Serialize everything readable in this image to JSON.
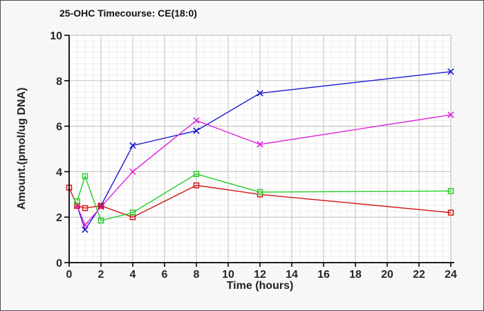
{
  "window": {
    "background": "#f7f7f7",
    "border_color": "#4d4d4d"
  },
  "chart_data": {
    "type": "line",
    "title": "25-OHC Timecourse: CE(18:0)",
    "xlabel": "Time (hours)",
    "ylabel": "Amount.(pmol/ug DNA)",
    "xlim": [
      0,
      24
    ],
    "ylim": [
      0,
      10
    ],
    "xticks": [
      0,
      2,
      4,
      6,
      8,
      10,
      12,
      14,
      16,
      18,
      20,
      22,
      24
    ],
    "yticks": [
      0,
      2,
      4,
      6,
      8,
      10
    ],
    "grid": {
      "major": true,
      "minor": true,
      "major_color": "#c8c8c8",
      "minor_color": "#ececec",
      "minor_x_step": 0.5,
      "minor_y_step": 0.25
    },
    "legend": "none",
    "plot_background": "#ffffff",
    "axis_color": "#000000",
    "tick_label_color": "#262626",
    "series": [
      {
        "name": "blue-series",
        "color": "#1818cf",
        "marker": "x",
        "points": [
          [
            0.5,
            2.5
          ],
          [
            1,
            1.45
          ],
          [
            2,
            2.5
          ],
          [
            4,
            5.15
          ],
          [
            8,
            5.8
          ],
          [
            12,
            7.45
          ],
          [
            24,
            8.4
          ]
        ]
      },
      {
        "name": "magenta-series",
        "color": "#dd22dd",
        "marker": "x",
        "points": [
          [
            0.5,
            2.5
          ],
          [
            1,
            1.65
          ],
          [
            2,
            2.45
          ],
          [
            4,
            4.0
          ],
          [
            8,
            6.25
          ],
          [
            12,
            5.2
          ],
          [
            24,
            6.5
          ]
        ]
      },
      {
        "name": "red-series",
        "color": "#d41414",
        "marker": "square",
        "points": [
          [
            0,
            3.3
          ],
          [
            0.5,
            2.5
          ],
          [
            1,
            2.4
          ],
          [
            2,
            2.5
          ],
          [
            4,
            2.0
          ],
          [
            8,
            3.4
          ],
          [
            12,
            3.0
          ],
          [
            24,
            2.2
          ]
        ]
      },
      {
        "name": "green-series",
        "color": "#22cc22",
        "marker": "square",
        "points": [
          [
            0.5,
            2.7
          ],
          [
            1,
            3.8
          ],
          [
            2,
            1.85
          ],
          [
            4,
            2.2
          ],
          [
            8,
            3.9
          ],
          [
            12,
            3.1
          ],
          [
            24,
            3.15
          ]
        ]
      }
    ]
  }
}
